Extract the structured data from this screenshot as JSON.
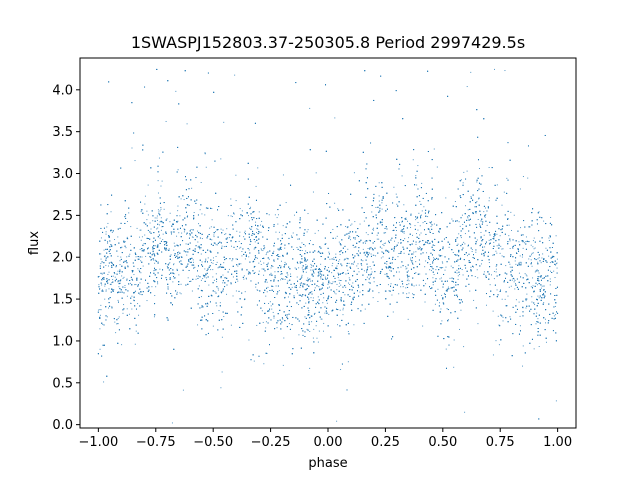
{
  "chart_data": {
    "type": "scatter",
    "title": "1SWASPJ152803.37-250305.8 Period 2997429.5s",
    "xlabel": "phase",
    "ylabel": "flux",
    "xlim": [
      -1.08,
      1.08
    ],
    "ylim": [
      -0.04,
      4.38
    ],
    "x_ticks": [
      -1.0,
      -0.75,
      -0.5,
      -0.25,
      0.0,
      0.25,
      0.5,
      0.75,
      1.0
    ],
    "x_tick_labels": [
      "−1.00",
      "−0.75",
      "−0.50",
      "−0.25",
      "0.00",
      "0.25",
      "0.50",
      "0.75",
      "1.00"
    ],
    "y_ticks": [
      0.0,
      0.5,
      1.0,
      1.5,
      2.0,
      2.5,
      3.0,
      3.5,
      4.0
    ],
    "y_tick_labels": [
      "0.0",
      "0.5",
      "1.0",
      "1.5",
      "2.0",
      "2.5",
      "3.0",
      "3.5",
      "4.0"
    ],
    "grid": false,
    "marker_color": "#1f77b4",
    "x_range": [
      -1.0,
      1.0
    ],
    "series": [
      {
        "points": [
          [
            -0.98,
            1.75
          ],
          [
            -0.95,
            1.9
          ],
          [
            -0.91,
            1.6
          ],
          [
            -0.88,
            2.05
          ],
          [
            -0.84,
            1.7
          ],
          [
            -0.8,
            2.2
          ],
          [
            -0.76,
            1.95
          ],
          [
            -0.73,
            2.35
          ],
          [
            -0.69,
            1.85
          ],
          [
            -0.65,
            2.1
          ],
          [
            -0.61,
            2.3
          ],
          [
            -0.57,
            2.05
          ],
          [
            -0.53,
            1.8
          ],
          [
            -0.49,
            1.9
          ],
          [
            -0.45,
            1.75
          ],
          [
            -0.41,
            2.15
          ],
          [
            -0.37,
            1.95
          ],
          [
            -0.33,
            2.25
          ],
          [
            -0.29,
            1.85
          ],
          [
            -0.25,
            1.7
          ],
          [
            -0.21,
            1.9
          ],
          [
            -0.17,
            1.6
          ],
          [
            -0.13,
            1.8
          ],
          [
            -0.09,
            1.7
          ],
          [
            -0.05,
            1.65
          ],
          [
            -0.01,
            1.75
          ],
          [
            0.03,
            1.8
          ],
          [
            0.07,
            1.7
          ],
          [
            0.11,
            1.85
          ],
          [
            0.15,
            1.95
          ],
          [
            0.19,
            2.1
          ],
          [
            0.23,
            2.3
          ],
          [
            0.27,
            2.0
          ],
          [
            0.31,
            2.2
          ],
          [
            0.35,
            1.9
          ],
          [
            0.39,
            2.15
          ],
          [
            0.43,
            2.25
          ],
          [
            0.47,
            1.85
          ],
          [
            0.51,
            1.75
          ],
          [
            0.55,
            1.95
          ],
          [
            0.59,
            2.05
          ],
          [
            0.63,
            2.2
          ],
          [
            0.67,
            2.35
          ],
          [
            0.71,
            2.0
          ],
          [
            0.75,
            1.9
          ],
          [
            0.79,
            2.05
          ],
          [
            0.83,
            1.7
          ],
          [
            0.87,
            1.85
          ],
          [
            0.91,
            1.65
          ],
          [
            0.95,
            1.8
          ],
          [
            0.99,
            1.75
          ]
        ]
      }
    ]
  }
}
